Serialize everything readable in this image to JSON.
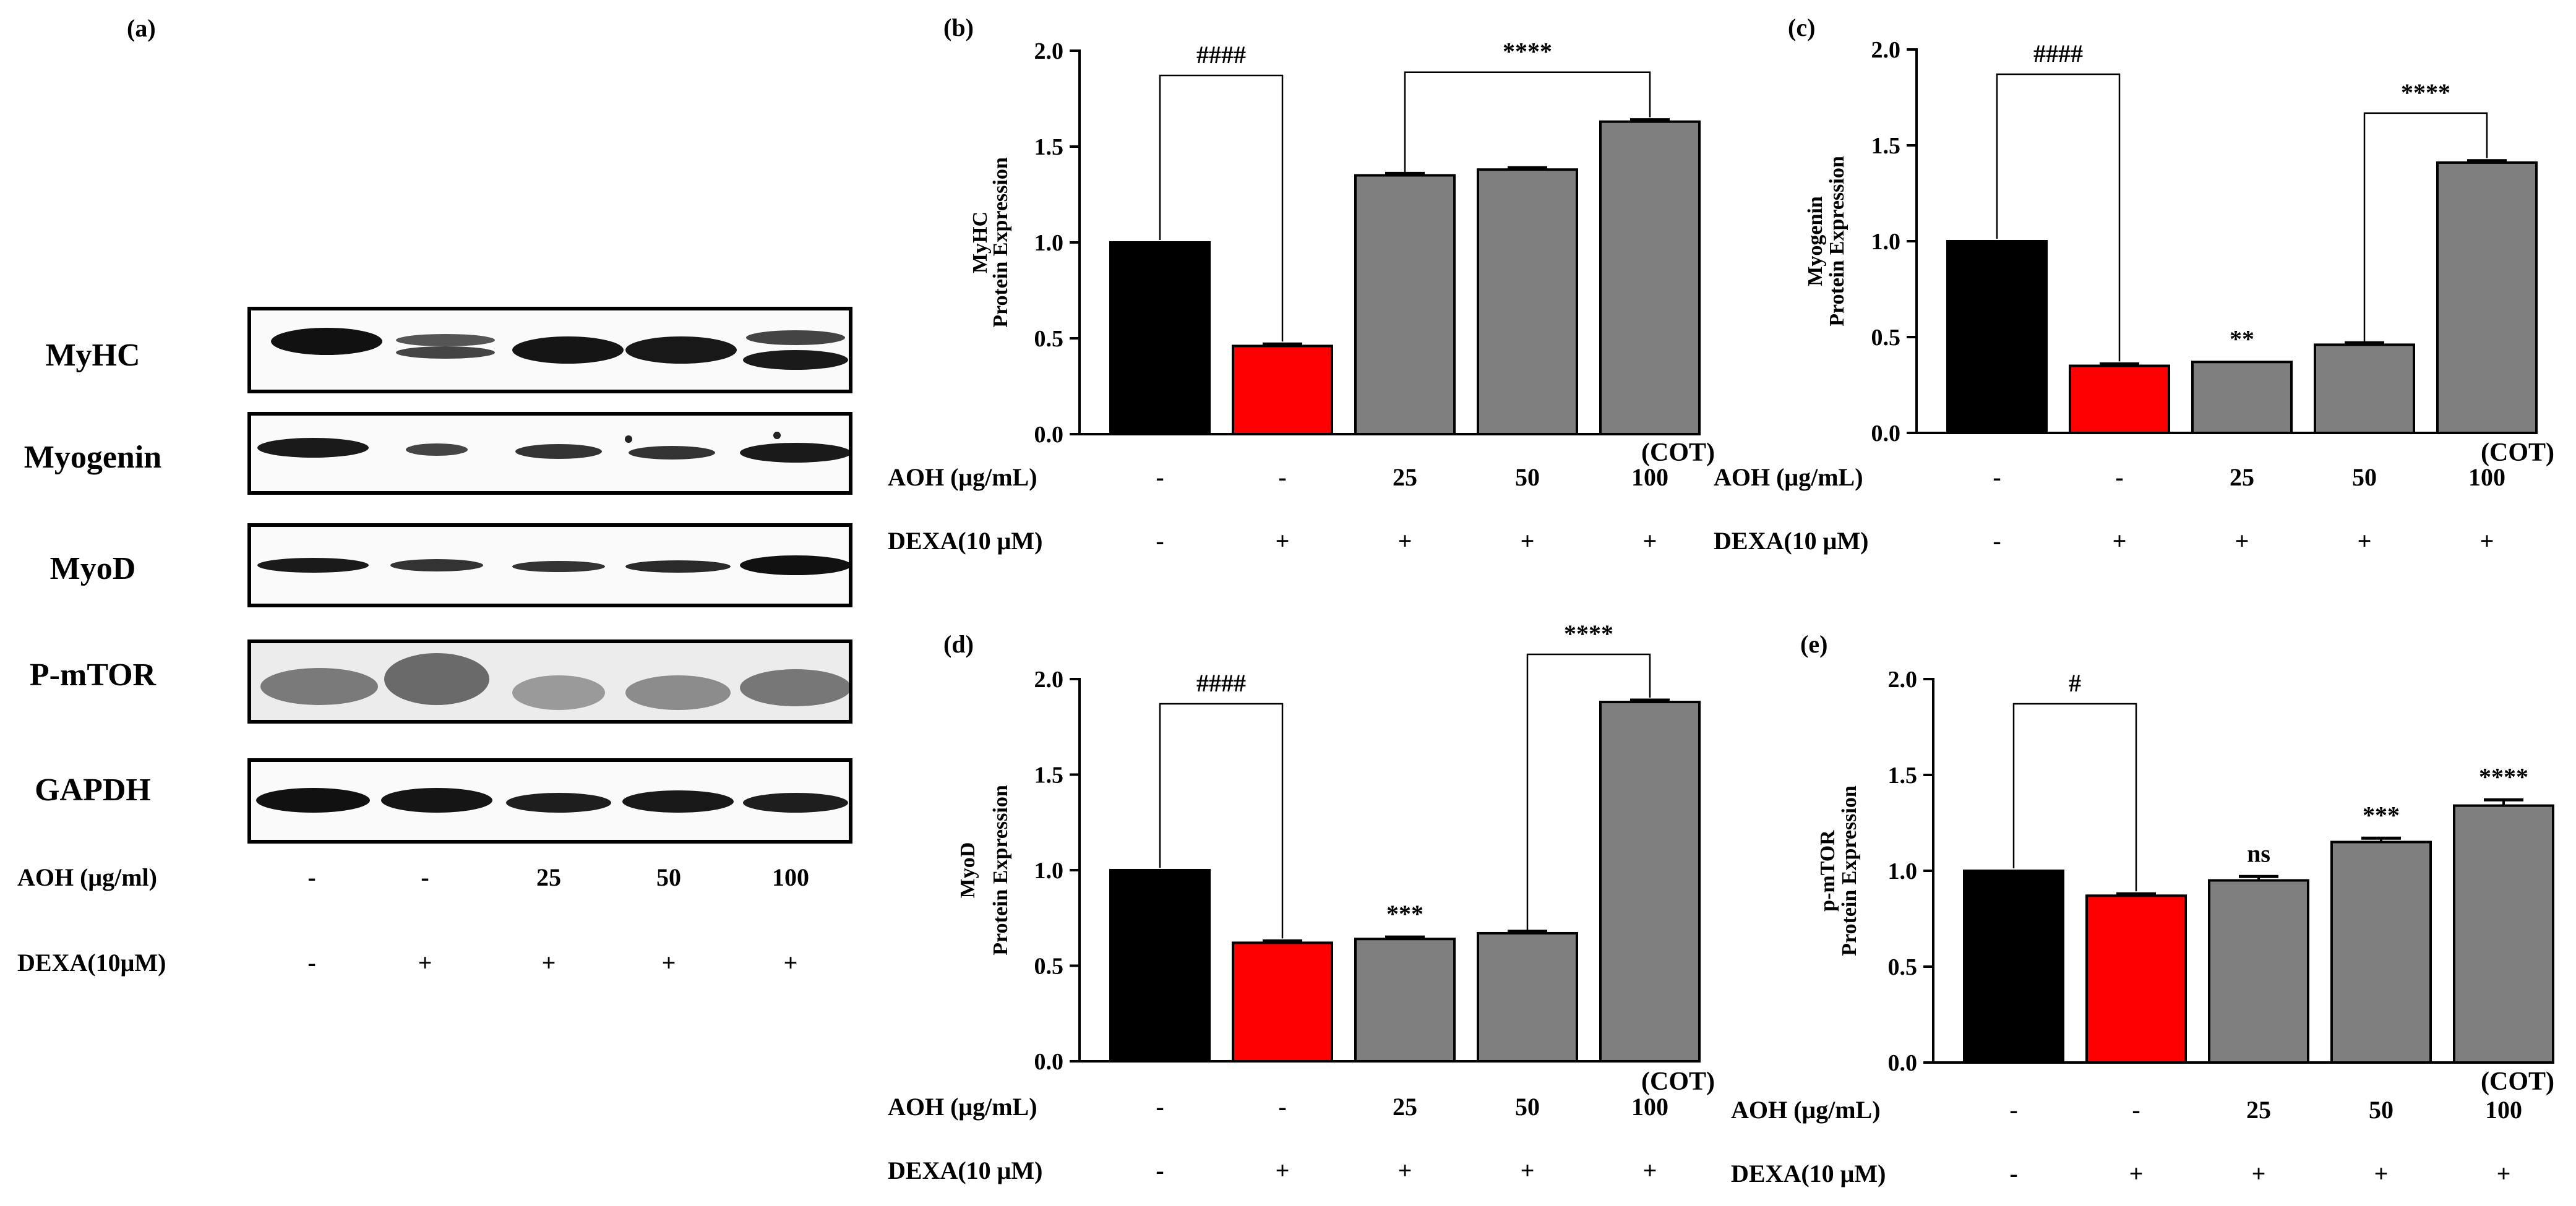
{
  "panel_a": {
    "label": "(a)",
    "blots": [
      {
        "name": "MyHC"
      },
      {
        "name": "Myogenin"
      },
      {
        "name": "MyoD"
      },
      {
        "name": "P-mTOR"
      },
      {
        "name": "GAPDH"
      }
    ],
    "aoh_label": "AOH (μg/ml)",
    "aoh_values": [
      "-",
      "-",
      "25",
      "50",
      "100"
    ],
    "dexa_label": "DEXA(10μM)",
    "dexa_values": [
      "-",
      "+",
      "+",
      "+",
      "+"
    ]
  },
  "colors": {
    "control": "#000000",
    "dexa": "#ff0000",
    "treatment": "#7f7f7f"
  },
  "chart_data": [
    {
      "type": "bar",
      "panel": "(b)",
      "ylabel": "MyHC",
      "ylabel2": "Protein Expression",
      "ylim": [
        0,
        2.0
      ],
      "yticks": [
        "0.0",
        "0.5",
        "1.0",
        "1.5",
        "2.0"
      ],
      "categories": [
        "-/-",
        "-/+",
        "25/+",
        "50/+",
        "100/+"
      ],
      "values": [
        1.0,
        0.46,
        1.35,
        1.38,
        1.63
      ],
      "errors": [
        0,
        0.01,
        0.01,
        0.01,
        0.01
      ],
      "sig": [
        "",
        "",
        "",
        "",
        ""
      ],
      "brackets": [
        {
          "from": 0,
          "to": 1,
          "label": "####"
        },
        {
          "from": 2,
          "to": 4,
          "label": "****"
        }
      ],
      "cot": "(COT)",
      "aoh_label": "AOH (μg/mL)",
      "aoh_values": [
        "-",
        "-",
        "25",
        "50",
        "100"
      ],
      "dexa_label": "DEXA(10 μM)",
      "dexa_values": [
        "-",
        "+",
        "+",
        "+",
        "+"
      ]
    },
    {
      "type": "bar",
      "panel": "(c)",
      "ylabel": "Myogenin",
      "ylabel2": "Protein Expression",
      "ylim": [
        0,
        2.0
      ],
      "yticks": [
        "0.0",
        "0.5",
        "1.0",
        "1.5",
        "2.0"
      ],
      "categories": [
        "-/-",
        "-/+",
        "25/+",
        "50/+",
        "100/+"
      ],
      "values": [
        1.0,
        0.35,
        0.37,
        0.46,
        1.41
      ],
      "errors": [
        0,
        0.01,
        0,
        0.01,
        0.01
      ],
      "sig": [
        "",
        "",
        "**",
        "",
        ""
      ],
      "brackets": [
        {
          "from": 0,
          "to": 1,
          "label": "####"
        },
        {
          "from": 3,
          "to": 4,
          "label": "****"
        }
      ],
      "cot": "(COT)",
      "aoh_label": "AOH (μg/mL)",
      "aoh_values": [
        "-",
        "-",
        "25",
        "50",
        "100"
      ],
      "dexa_label": "DEXA(10 μM)",
      "dexa_values": [
        "-",
        "+",
        "+",
        "+",
        "+"
      ]
    },
    {
      "type": "bar",
      "panel": "(d)",
      "ylabel": "MyoD",
      "ylabel2": "Protein Expression",
      "ylim": [
        0,
        2.0
      ],
      "yticks": [
        "0.0",
        "0.5",
        "1.0",
        "1.5",
        "2.0"
      ],
      "categories": [
        "-/-",
        "-/+",
        "25/+",
        "50/+",
        "100/+"
      ],
      "values": [
        1.0,
        0.62,
        0.64,
        0.67,
        1.88
      ],
      "errors": [
        0,
        0.01,
        0.01,
        0.01,
        0.01
      ],
      "sig": [
        "",
        "",
        "***",
        "",
        ""
      ],
      "brackets": [
        {
          "from": 0,
          "to": 1,
          "label": "####"
        },
        {
          "from": 3,
          "to": 4,
          "label": "****"
        }
      ],
      "cot": "(COT)",
      "aoh_label": "AOH (μg/mL)",
      "aoh_values": [
        "-",
        "-",
        "25",
        "50",
        "100"
      ],
      "dexa_label": "DEXA(10 μM)",
      "dexa_values": [
        "-",
        "+",
        "+",
        "+",
        "+"
      ]
    },
    {
      "type": "bar",
      "panel": "(e)",
      "ylabel": "p-mTOR",
      "ylabel2": "Protein Expression",
      "ylim": [
        0,
        2.0
      ],
      "yticks": [
        "0.0",
        "0.5",
        "1.0",
        "1.5",
        "2.0"
      ],
      "categories": [
        "-/-",
        "-/+",
        "25/+",
        "50/+",
        "100/+"
      ],
      "values": [
        1.0,
        0.87,
        0.95,
        1.15,
        1.34
      ],
      "errors": [
        0,
        0.01,
        0.02,
        0.02,
        0.03
      ],
      "sig": [
        "",
        "",
        "ns",
        "***",
        "****"
      ],
      "brackets": [
        {
          "from": 0,
          "to": 1,
          "label": "#"
        }
      ],
      "cot": "(COT)",
      "aoh_label": "AOH (μg/mL)",
      "aoh_values": [
        "-",
        "-",
        "25",
        "50",
        "100"
      ],
      "dexa_label": "DEXA(10 μM)",
      "dexa_values": [
        "-",
        "+",
        "+",
        "+",
        "+"
      ]
    }
  ]
}
